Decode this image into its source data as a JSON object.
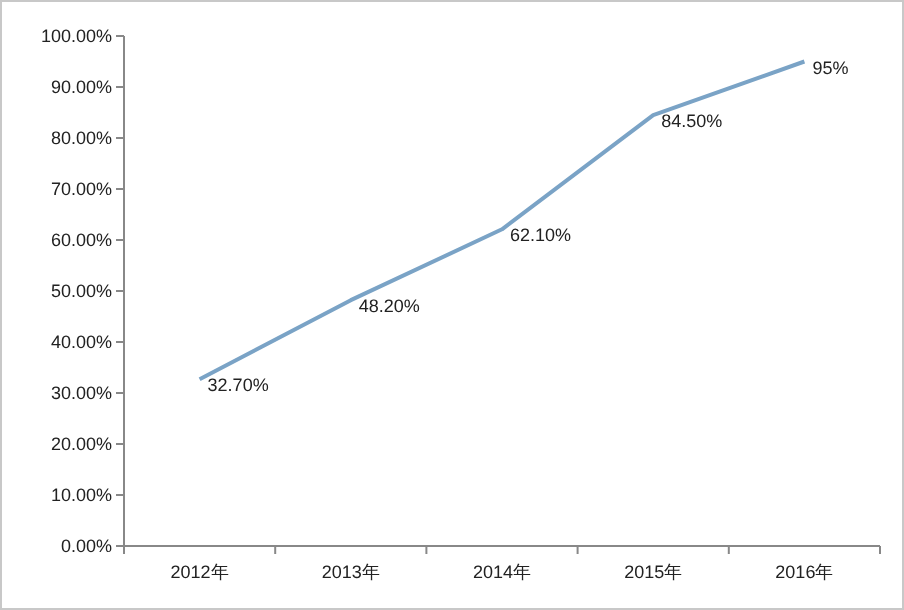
{
  "chart_data": {
    "type": "line",
    "categories": [
      "2012年",
      "2013年",
      "2014年",
      "2015年",
      "2016年"
    ],
    "series": [
      {
        "color": "#7aa3c6",
        "values": [
          32.7,
          48.2,
          62.1,
          84.5,
          95
        ],
        "value_labels": [
          "32.70%",
          "48.20%",
          "62.10%",
          "84.50%",
          "95%"
        ]
      }
    ],
    "ylim": [
      0,
      100
    ],
    "yticks": [
      {
        "value": 0,
        "label": "0.00%"
      },
      {
        "value": 10,
        "label": "10.00%"
      },
      {
        "value": 20,
        "label": "20.00%"
      },
      {
        "value": 30,
        "label": "30.00%"
      },
      {
        "value": 40,
        "label": "40.00%"
      },
      {
        "value": 50,
        "label": "50.00%"
      },
      {
        "value": 60,
        "label": "60.00%"
      },
      {
        "value": 70,
        "label": "70.00%"
      },
      {
        "value": 80,
        "label": "80.00%"
      },
      {
        "value": 90,
        "label": "90.00%"
      },
      {
        "value": 100,
        "label": "100.00%"
      }
    ],
    "grid": false,
    "marker": "none",
    "line_style": "solid"
  }
}
